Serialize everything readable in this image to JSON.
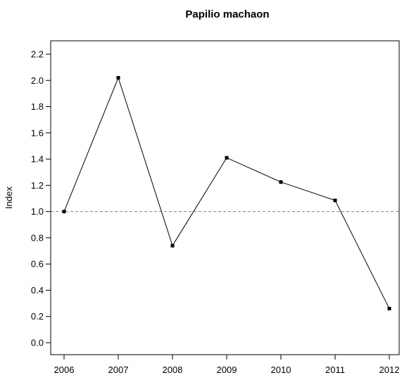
{
  "chart_data": {
    "type": "line",
    "title": "Papilio machaon",
    "xlabel": "",
    "ylabel": "Index",
    "x": [
      2006,
      2007,
      2008,
      2009,
      2010,
      2011,
      2012
    ],
    "x_tick_labels": [
      "2006",
      "2007",
      "2008",
      "2009",
      "2010",
      "2011",
      "2012"
    ],
    "values": [
      1.0,
      2.02,
      0.74,
      1.41,
      1.225,
      1.085,
      0.26
    ],
    "ylim": [
      0.0,
      2.2
    ],
    "y_ticks": [
      0.0,
      0.2,
      0.4,
      0.6,
      0.8,
      1.0,
      1.2,
      1.4,
      1.6,
      1.8,
      2.0,
      2.2
    ],
    "y_tick_labels": [
      "0.0",
      "0.2",
      "0.4",
      "0.6",
      "0.8",
      "1.0",
      "1.2",
      "1.4",
      "1.6",
      "1.8",
      "2.0",
      "2.2"
    ],
    "reference_line": {
      "y": 1.0,
      "style": "dashed"
    },
    "grid": false,
    "line_color": "#000000",
    "reference_line_color": "#808080"
  }
}
